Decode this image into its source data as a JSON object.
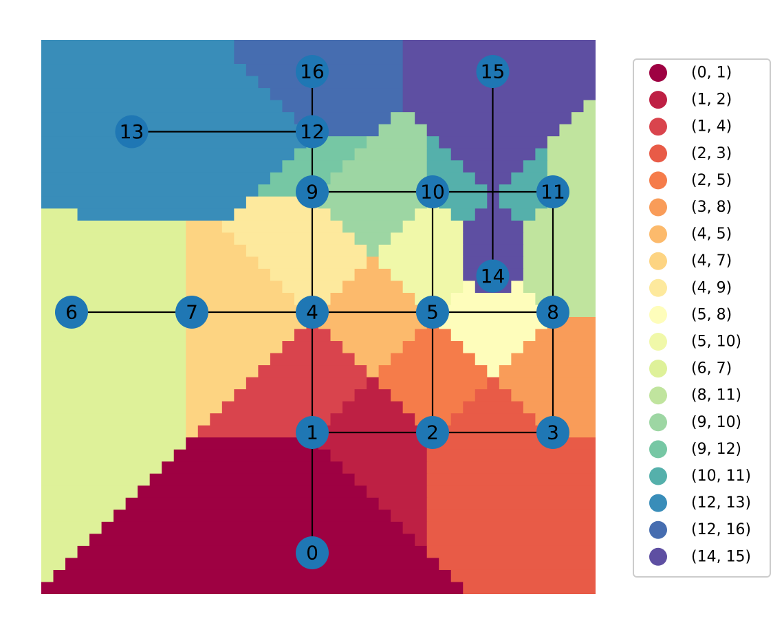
{
  "regions": [
    {
      "edge": "(0, 1)",
      "color": "#9e0142"
    },
    {
      "edge": "(1, 2)",
      "color": "#be2044"
    },
    {
      "edge": "(1, 4)",
      "color": "#d9444d"
    },
    {
      "edge": "(2, 3)",
      "color": "#e85b47"
    },
    {
      "edge": "(2, 5)",
      "color": "#f57c4a"
    },
    {
      "edge": "(3, 8)",
      "color": "#f99c59"
    },
    {
      "edge": "(4, 5)",
      "color": "#fcba6c"
    },
    {
      "edge": "(4, 7)",
      "color": "#fdd482"
    },
    {
      "edge": "(4, 9)",
      "color": "#fde99d"
    },
    {
      "edge": "(5, 8)",
      "color": "#fefdbb"
    },
    {
      "edge": "(5, 10)",
      "color": "#f0f8a9"
    },
    {
      "edge": "(6, 7)",
      "color": "#def199"
    },
    {
      "edge": "(8, 11)",
      "color": "#c0e49e"
    },
    {
      "edge": "(9, 10)",
      "color": "#9dd6a3"
    },
    {
      "edge": "(9, 12)",
      "color": "#76c7a4"
    },
    {
      "edge": "(10, 11)",
      "color": "#55b0ab"
    },
    {
      "edge": "(12, 13)",
      "color": "#398db9"
    },
    {
      "edge": "(12, 16)",
      "color": "#466db0"
    },
    {
      "edge": "(14, 15)",
      "color": "#5e4fa2"
    }
  ],
  "nodes": [
    {
      "id": "0",
      "x": 2,
      "y": 0
    },
    {
      "id": "1",
      "x": 2,
      "y": 2
    },
    {
      "id": "2",
      "x": 4,
      "y": 2
    },
    {
      "id": "3",
      "x": 6,
      "y": 2
    },
    {
      "id": "4",
      "x": 2,
      "y": 4
    },
    {
      "id": "5",
      "x": 4,
      "y": 4
    },
    {
      "id": "6",
      "x": -2,
      "y": 4
    },
    {
      "id": "7",
      "x": 0,
      "y": 4
    },
    {
      "id": "8",
      "x": 6,
      "y": 4
    },
    {
      "id": "9",
      "x": 2,
      "y": 6
    },
    {
      "id": "10",
      "x": 4,
      "y": 6
    },
    {
      "id": "11",
      "x": 6,
      "y": 6
    },
    {
      "id": "12",
      "x": 2,
      "y": 7
    },
    {
      "id": "13",
      "x": -1,
      "y": 7
    },
    {
      "id": "14",
      "x": 5,
      "y": 4.6
    },
    {
      "id": "15",
      "x": 5,
      "y": 8
    },
    {
      "id": "16",
      "x": 2,
      "y": 8
    }
  ],
  "edges": [
    [
      "0",
      "1"
    ],
    [
      "1",
      "2"
    ],
    [
      "1",
      "4"
    ],
    [
      "2",
      "3"
    ],
    [
      "2",
      "5"
    ],
    [
      "3",
      "8"
    ],
    [
      "4",
      "5"
    ],
    [
      "4",
      "7"
    ],
    [
      "4",
      "9"
    ],
    [
      "5",
      "8"
    ],
    [
      "5",
      "10"
    ],
    [
      "6",
      "7"
    ],
    [
      "8",
      "11"
    ],
    [
      "9",
      "10"
    ],
    [
      "9",
      "12"
    ],
    [
      "10",
      "11"
    ],
    [
      "12",
      "13"
    ],
    [
      "12",
      "16"
    ],
    [
      "14",
      "15"
    ]
  ],
  "colors": {
    "node": "#1f77b4",
    "edge": "#000000",
    "legend_border": "#cccccc"
  }
}
